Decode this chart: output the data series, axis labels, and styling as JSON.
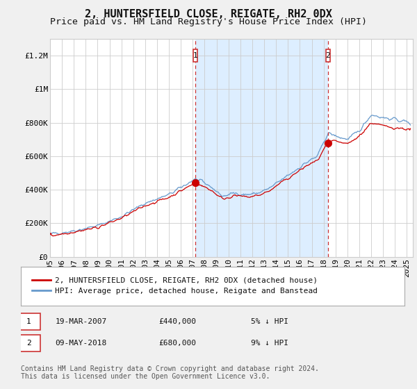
{
  "title": "2, HUNTERSFIELD CLOSE, REIGATE, RH2 0DX",
  "subtitle": "Price paid vs. HM Land Registry's House Price Index (HPI)",
  "ylabel_ticks": [
    0,
    200000,
    400000,
    600000,
    800000,
    1000000,
    1200000
  ],
  "ylabel_labels": [
    "£0",
    "£200K",
    "£400K",
    "£600K",
    "£800K",
    "£1M",
    "£1.2M"
  ],
  "ylim": [
    0,
    1300000
  ],
  "xlim_start": 1995.0,
  "xlim_end": 2025.5,
  "sale1_year": 2007.22,
  "sale1_price": 440000,
  "sale1_label": "1",
  "sale1_date": "19-MAR-2007",
  "sale1_amount": "£440,000",
  "sale1_hpi": "5% ↓ HPI",
  "sale2_year": 2018.36,
  "sale2_price": 680000,
  "sale2_label": "2",
  "sale2_date": "09-MAY-2018",
  "sale2_amount": "£680,000",
  "sale2_hpi": "9% ↓ HPI",
  "line1_color": "#cc0000",
  "line2_color": "#6699cc",
  "shade_color": "#ddeeff",
  "marker_color": "#cc0000",
  "marker_box_color": "#cc3333",
  "grid_color": "#cccccc",
  "background_color": "#f0f0f0",
  "plot_bg_color": "#ffffff",
  "legend_line1": "2, HUNTERSFIELD CLOSE, REIGATE, RH2 0DX (detached house)",
  "legend_line2": "HPI: Average price, detached house, Reigate and Banstead",
  "footer1": "Contains HM Land Registry data © Crown copyright and database right 2024.",
  "footer2": "This data is licensed under the Open Government Licence v3.0.",
  "title_fontsize": 11,
  "subtitle_fontsize": 9.5,
  "axis_fontsize": 8,
  "legend_fontsize": 8,
  "table_fontsize": 8,
  "footer_fontsize": 7
}
